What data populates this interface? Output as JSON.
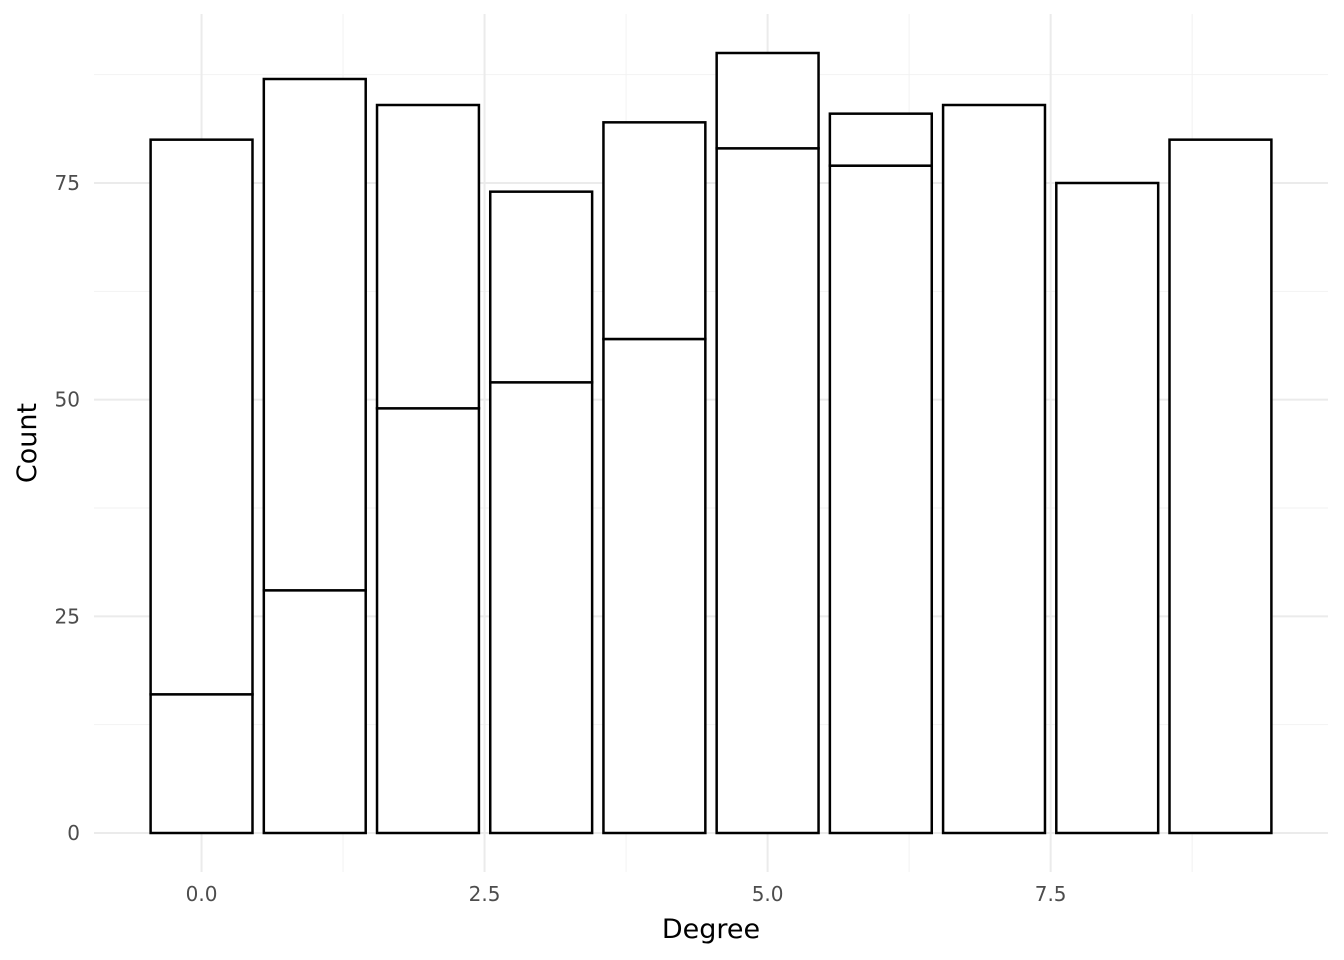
{
  "chart_data": {
    "type": "bar",
    "stacked": true,
    "xlabel": "Degree",
    "ylabel": "Count",
    "x": [
      0,
      1,
      2,
      3,
      4,
      5,
      6,
      7,
      8,
      9
    ],
    "series": [
      {
        "values": [
          16,
          28,
          49,
          52,
          57,
          79,
          77,
          84,
          75,
          80
        ]
      },
      {
        "values": [
          64,
          59,
          35,
          22,
          25,
          11,
          6,
          0,
          0,
          0
        ]
      }
    ],
    "totals": [
      80,
      87,
      84,
      74,
      82,
      90,
      83,
      84,
      75,
      80
    ],
    "xlim": [
      -0.95,
      9.95
    ],
    "ylim": [
      -4.5,
      94.5
    ],
    "x_ticks": [
      0,
      2.5,
      5,
      7.5
    ],
    "x_tick_labels": [
      "0.0",
      "2.5",
      "5.0",
      "7.5"
    ],
    "y_ticks": [
      0,
      25,
      50,
      75
    ],
    "y_tick_labels": [
      "0",
      "25",
      "50",
      "75"
    ],
    "grid": true,
    "legend": "none",
    "colors": {
      "bar_fill": "#ffffff",
      "bar_outline": "#000000",
      "grid": "#ebebeb"
    }
  }
}
